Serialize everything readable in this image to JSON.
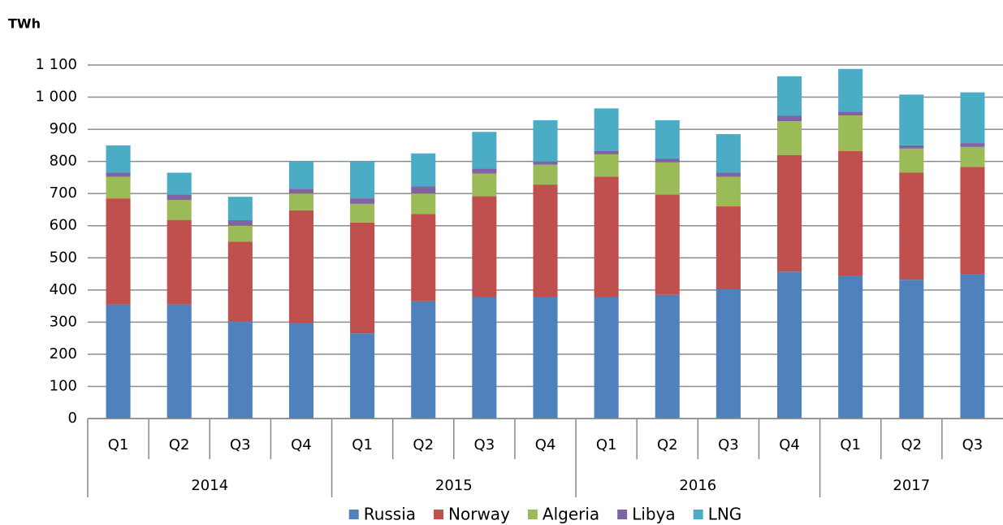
{
  "chart_data": {
    "type": "stacked_bar",
    "y_label": "TWh",
    "categories": [
      "Q1",
      "Q2",
      "Q3",
      "Q4",
      "Q1",
      "Q2",
      "Q3",
      "Q4",
      "Q1",
      "Q2",
      "Q3",
      "Q4",
      "Q1",
      "Q2",
      "Q3"
    ],
    "years": [
      "2014",
      "2015",
      "2016",
      "2017"
    ],
    "series": [
      {
        "name": "Russia",
        "color": "#4f81bd",
        "values": [
          355,
          355,
          302,
          297,
          265,
          365,
          378,
          378,
          378,
          385,
          402,
          457,
          445,
          432,
          450
        ]
      },
      {
        "name": "Norway",
        "color": "#c0504d",
        "values": [
          330,
          263,
          248,
          351,
          345,
          271,
          314,
          350,
          375,
          312,
          258,
          363,
          387,
          333,
          333
        ]
      },
      {
        "name": "Algeria",
        "color": "#9bbb59",
        "values": [
          67,
          62,
          50,
          52,
          58,
          64,
          70,
          62,
          69,
          100,
          92,
          105,
          111,
          75,
          62
        ]
      },
      {
        "name": "Libya",
        "color": "#8064a2",
        "values": [
          13,
          17,
          17,
          15,
          17,
          22,
          16,
          10,
          11,
          11,
          13,
          17,
          12,
          10,
          12
        ]
      },
      {
        "name": "LNG",
        "color": "#4bacc6",
        "values": [
          85,
          68,
          73,
          85,
          115,
          103,
          114,
          128,
          132,
          120,
          120,
          123,
          133,
          158,
          158
        ]
      }
    ],
    "ylim": [
      0,
      1100
    ],
    "yticks": [
      0,
      100,
      200,
      300,
      400,
      500,
      600,
      700,
      800,
      900,
      {
        "value": 1000,
        "label": "1 000"
      },
      {
        "value": 1100,
        "label": "1 100"
      }
    ],
    "grid": true,
    "legend": "bottom"
  }
}
